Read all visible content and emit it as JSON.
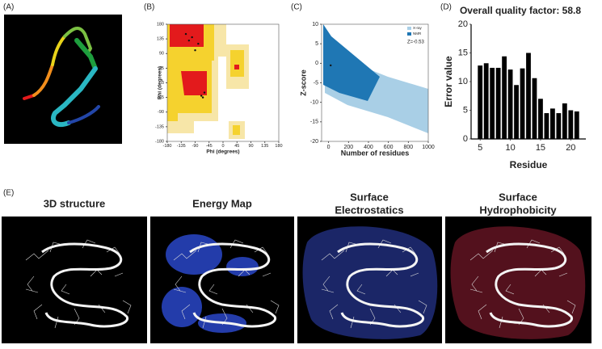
{
  "panel_labels": [
    "(A)",
    "(B)",
    "(C)",
    "(D)",
    "(E)"
  ],
  "panel_e_titles": [
    [
      "3D structure"
    ],
    [
      "Energy Map"
    ],
    [
      "Surface",
      "Electrostatics"
    ],
    [
      "Surface",
      "Hydrophobicity"
    ]
  ],
  "chart_data": [
    {
      "type": "scatter",
      "xlabel": "Phi (degrees)",
      "ylabel": "Phi (degrees)",
      "x": [
        -120,
        -100,
        -90,
        -80,
        -110,
        -70,
        -60,
        -65
      ],
      "y": [
        150,
        140,
        100,
        120,
        130,
        -40,
        -30,
        -45
      ],
      "color": "#111111",
      "xlim": [
        -180,
        180
      ],
      "ylim": [
        -180,
        180
      ],
      "xticks": [
        -180,
        -135,
        -90,
        -45,
        0,
        45,
        90,
        135,
        180
      ],
      "yticks": [
        180,
        135,
        90,
        45,
        0,
        -45,
        -90,
        -135,
        -180
      ]
    },
    {
      "type": "scatter",
      "xlabel": "Number of residues",
      "ylabel": "Z-score",
      "legend": [
        {
          "name": "X-ray",
          "color": "#a9cfe6"
        },
        {
          "name": "NMR",
          "color": "#1f77b4"
        }
      ],
      "annotation": "Z=-0.53",
      "x": [
        21
      ],
      "y": [
        -0.53
      ],
      "color": "#111111",
      "xlim": [
        -70,
        1000
      ],
      "ylim": [
        -20,
        10
      ],
      "xticks": [
        0,
        200,
        400,
        600,
        800,
        1000
      ],
      "yticks": [
        10,
        5,
        0,
        -5,
        -10,
        -15,
        -20
      ]
    },
    {
      "type": "bar",
      "title": "Overall quality factor: 58.8",
      "xlabel": "Residue",
      "ylabel": "Error value",
      "x": [
        5,
        6,
        7,
        8,
        9,
        10,
        11,
        12,
        13,
        14,
        15,
        16,
        17,
        18,
        19,
        20,
        21
      ],
      "values": [
        12.8,
        13.2,
        12.4,
        12.4,
        14.4,
        12.1,
        9.4,
        12.3,
        15,
        10.6,
        7,
        4.5,
        5.3,
        4.5,
        6.2,
        5,
        4.8
      ],
      "color": "#000000",
      "xlim": [
        3.5,
        22.5
      ],
      "ylim": [
        0,
        20
      ],
      "xticks": [
        5,
        10,
        15,
        20
      ],
      "yticks": [
        0,
        5,
        10,
        15,
        20
      ]
    }
  ]
}
